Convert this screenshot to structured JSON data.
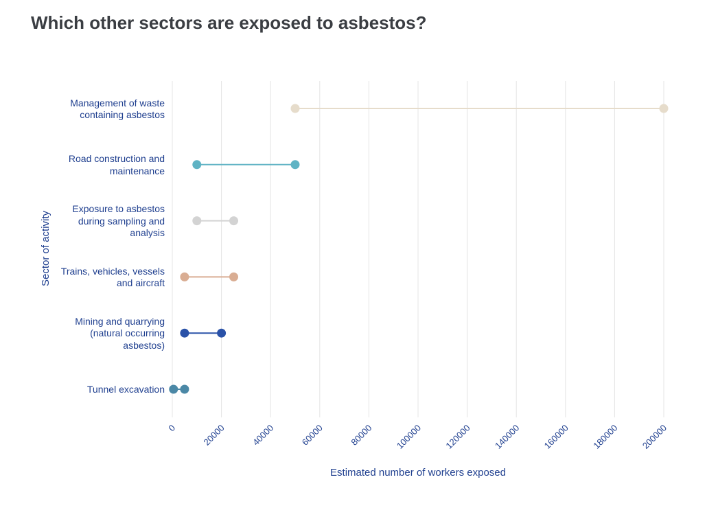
{
  "title": "Which other sectors are exposed to asbestos?",
  "chart_data": {
    "type": "dumbbell",
    "title": "Which other sectors are exposed to asbestos?",
    "xlabel": "Estimated number of workers exposed",
    "ylabel": "Sector of activity",
    "xlim": [
      0,
      200000
    ],
    "xticks": [
      0,
      20000,
      40000,
      60000,
      80000,
      100000,
      120000,
      140000,
      160000,
      180000,
      200000
    ],
    "grid": "vertical",
    "categories": [
      {
        "label": "Management of waste containing asbestos",
        "lines": [
          "Management of waste",
          "containing asbestos"
        ],
        "min": 50000,
        "max": 200000,
        "color": "#e6dccb"
      },
      {
        "label": "Road construction and maintenance",
        "lines": [
          "Road construction and",
          "maintenance"
        ],
        "min": 10000,
        "max": 50000,
        "color": "#5fb3c4"
      },
      {
        "label": "Exposure to asbestos during sampling and analysis",
        "lines": [
          "Exposure to asbestos",
          "during sampling and",
          "analysis"
        ],
        "min": 10000,
        "max": 25000,
        "color": "#d3d3d3"
      },
      {
        "label": "Trains, vehicles, vessels and aircraft",
        "lines": [
          "Trains, vehicles, vessels",
          "and aircraft"
        ],
        "min": 5000,
        "max": 25000,
        "color": "#d9ad93"
      },
      {
        "label": "Mining and quarrying (natural occurring asbestos)",
        "lines": [
          "Mining and quarrying",
          "(natural occurring",
          "asbestos)"
        ],
        "min": 5000,
        "max": 20000,
        "color": "#2a52a8"
      },
      {
        "label": "Tunnel excavation",
        "lines": [
          "Tunnel excavation"
        ],
        "min": 500,
        "max": 5000,
        "color": "#4b88a6"
      }
    ]
  }
}
